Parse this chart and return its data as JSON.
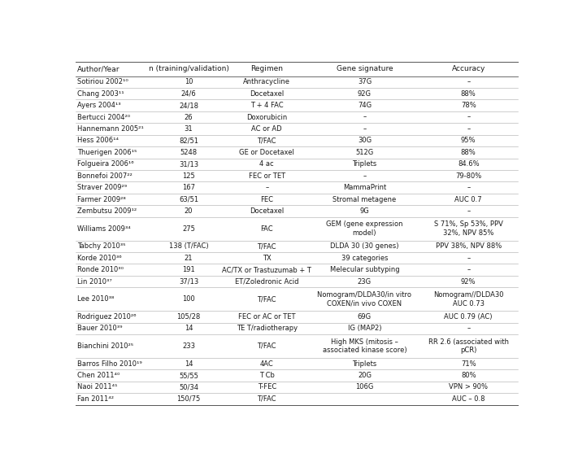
{
  "columns": [
    "Author/Year",
    "n (training/validation)",
    "Regimen",
    "Gene signature",
    "Accuracy"
  ],
  "col_props": [
    0.176,
    0.158,
    0.196,
    0.246,
    0.224
  ],
  "text_color": "#1a1a1a",
  "font_size": 6.0,
  "header_font_size": 6.5,
  "rows": [
    [
      "Sotiriou 2002¹⁰",
      "10",
      "Anthracycline",
      "37G",
      "–"
    ],
    [
      "Chang 2003¹¹",
      "24/6",
      "Docetaxel",
      "92G",
      "88%"
    ],
    [
      "Ayers 2004¹³",
      "24/18",
      "T + 4 FAC",
      "74G",
      "78%"
    ],
    [
      "Bertucci 2004²⁰",
      "26",
      "Doxorubicin",
      "–",
      "–"
    ],
    [
      "Hannemann 2005²¹",
      "31",
      "AC or AD",
      "–",
      "–"
    ],
    [
      "Hess 2006¹⁴",
      "82/51",
      "T/FAC",
      "30G",
      "95%"
    ],
    [
      "Thuerigen 2006¹⁵",
      "5248",
      "GE or Docetaxel",
      "512G",
      "88%"
    ],
    [
      "Folgueira 2006¹⁶",
      "31/13",
      "4 ac",
      "Triplets",
      "84.6%"
    ],
    [
      "Bonnefoi 2007²²",
      "125",
      "FEC or TET",
      "–",
      "79-80%"
    ],
    [
      "Straver 2009²⁹",
      "167",
      "–",
      "MammaPrint",
      "–"
    ],
    [
      "Farmer 2009²⁸",
      "63/51",
      "FEC",
      "Stromal metagene",
      "AUC 0.7"
    ],
    [
      "Zembutsu 2009¹²",
      "20",
      "Docetaxel",
      "9G",
      "–"
    ],
    [
      "Williams 2009³⁴",
      "275",
      "FAC",
      "GEM (gene expression\nmodel)",
      "S 71%, Sp 53%, PPV\n32%, NPV 85%"
    ],
    [
      "Tabchy 2010³⁵",
      "138 (T/FAC)",
      "T/FAC",
      "DLDA 30 (30 genes)",
      "PPV 38%, NPV 88%"
    ],
    [
      "Korde 2010³⁶",
      "21",
      "TX",
      "39 categories",
      "–"
    ],
    [
      "Ronde 2010³⁰",
      "191",
      "AC/TX or Trastuzumab + T",
      "Melecular subtyping",
      "–"
    ],
    [
      "Lin 2010³⁷",
      "37/13",
      "ET/Zoledronic Acid",
      "23G",
      "92%"
    ],
    [
      "Lee 2010³⁸",
      "100",
      "T/FAC",
      "Nomogram/DLDA30/in vitro\nCOXEN/in vivo COXEN",
      "Nomogram//DLDA30\nAUC 0.73"
    ],
    [
      "Rodriguez 2010²⁶",
      "105/28",
      "FEC or AC or TET",
      "69G",
      "AUC 0.79 (AC)"
    ],
    [
      "Bauer 2010³⁹",
      "14",
      "TE T/radiotherapy",
      "IG (MAP2)",
      "–"
    ],
    [
      "Bianchini 2010²⁵",
      "233",
      "T/FAC",
      "High MKS (mitosis –\nassociated kinase score)",
      "RR 2.6 (associated with\npCR)"
    ],
    [
      "Barros Filho 2010¹⁹",
      "14",
      "4AC",
      "Triplets",
      "71%"
    ],
    [
      "Chen 2011⁴⁰",
      "55/55",
      "T Cb",
      "20G",
      "80%"
    ],
    [
      "Naoi 2011⁴¹",
      "50/34",
      "T-FEC",
      "106G",
      "VPN > 90%"
    ],
    [
      "Fan 2011⁴²",
      "150/75",
      "T/FAC",
      "",
      "AUC – 0.8"
    ]
  ]
}
